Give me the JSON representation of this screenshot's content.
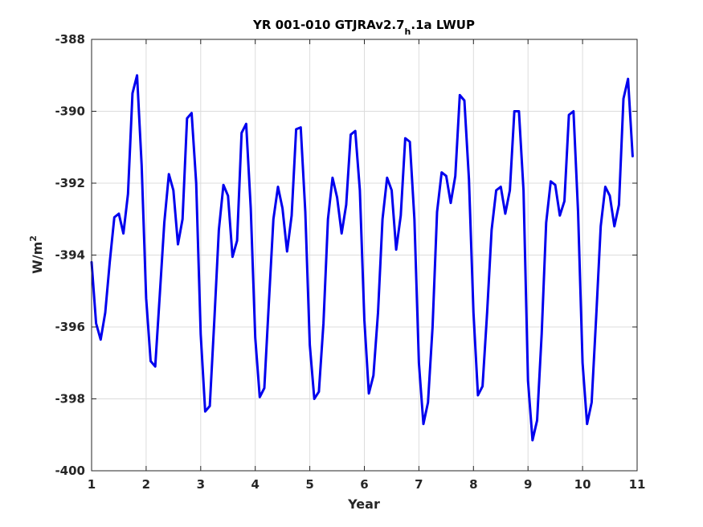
{
  "chart_data": {
    "type": "line",
    "title": {
      "main": "YR 001-010 GTJRAv2.7",
      "subscript": "h",
      "suffix": ".1a LWUP"
    },
    "xlabel": "Year",
    "ylabel": {
      "main": "W/m",
      "superscript": "2"
    },
    "xlim": [
      1,
      11
    ],
    "ylim": [
      -400,
      -388
    ],
    "xticks": [
      1,
      2,
      3,
      4,
      5,
      6,
      7,
      8,
      9,
      10,
      11
    ],
    "xtick_labels": [
      "1",
      "2",
      "3",
      "4",
      "5",
      "6",
      "7",
      "8",
      "9",
      "10",
      "11"
    ],
    "yticks": [
      -400,
      -398,
      -396,
      -394,
      -392,
      -390,
      -388
    ],
    "ytick_labels": [
      "-400",
      "-398",
      "-396",
      "-394",
      "-392",
      "-390",
      "-388"
    ],
    "grid": true,
    "line_color": "#0000ee",
    "series": [
      {
        "x": [
          1.0,
          1.083,
          1.167,
          1.25,
          1.333,
          1.417,
          1.5,
          1.583,
          1.667,
          1.75,
          1.833,
          1.917,
          2.0,
          2.083,
          2.167,
          2.25,
          2.333,
          2.417,
          2.5,
          2.583,
          2.667,
          2.75,
          2.833,
          2.917,
          3.0,
          3.083,
          3.167,
          3.25,
          3.333,
          3.417,
          3.5,
          3.583,
          3.667,
          3.75,
          3.833,
          3.917,
          4.0,
          4.083,
          4.167,
          4.25,
          4.333,
          4.417,
          4.5,
          4.583,
          4.667,
          4.75,
          4.833,
          4.917,
          5.0,
          5.083,
          5.167,
          5.25,
          5.333,
          5.417,
          5.5,
          5.583,
          5.667,
          5.75,
          5.833,
          5.917,
          6.0,
          6.083,
          6.167,
          6.25,
          6.333,
          6.417,
          6.5,
          6.583,
          6.667,
          6.75,
          6.833,
          6.917,
          7.0,
          7.083,
          7.167,
          7.25,
          7.333,
          7.417,
          7.5,
          7.583,
          7.667,
          7.75,
          7.833,
          7.917,
          8.0,
          8.083,
          8.167,
          8.25,
          8.333,
          8.417,
          8.5,
          8.583,
          8.667,
          8.75,
          8.833,
          8.917,
          9.0,
          9.083,
          9.167,
          9.25,
          9.333,
          9.417,
          9.5,
          9.583,
          9.667,
          9.75,
          9.833,
          9.917,
          10.0,
          10.083,
          10.167,
          10.25,
          10.333,
          10.417,
          10.5,
          10.583,
          10.667,
          10.75,
          10.833,
          10.917
        ],
        "y": [
          -394.2,
          -395.9,
          -396.35,
          -395.6,
          -394.2,
          -392.95,
          -392.85,
          -393.4,
          -392.3,
          -389.5,
          -389.0,
          -391.5,
          -395.2,
          -396.95,
          -397.1,
          -395.1,
          -393.1,
          -391.75,
          -392.2,
          -393.7,
          -393.0,
          -390.2,
          -390.05,
          -392.0,
          -396.2,
          -398.35,
          -398.2,
          -395.8,
          -393.3,
          -392.05,
          -392.35,
          -394.05,
          -393.6,
          -390.6,
          -390.35,
          -392.7,
          -396.3,
          -397.95,
          -397.7,
          -395.3,
          -393.0,
          -392.1,
          -392.7,
          -393.9,
          -392.9,
          -390.5,
          -390.45,
          -392.8,
          -396.5,
          -398.0,
          -397.8,
          -395.9,
          -393.0,
          -391.85,
          -392.4,
          -393.4,
          -392.6,
          -390.65,
          -390.55,
          -392.2,
          -395.8,
          -397.85,
          -397.35,
          -395.6,
          -393.0,
          -391.85,
          -392.2,
          -393.85,
          -392.9,
          -390.75,
          -390.85,
          -393.0,
          -397.0,
          -398.7,
          -398.1,
          -396.0,
          -392.8,
          -391.7,
          -391.8,
          -392.55,
          -391.8,
          -389.55,
          -389.7,
          -391.9,
          -395.6,
          -397.9,
          -397.65,
          -395.6,
          -393.3,
          -392.2,
          -392.1,
          -392.85,
          -392.2,
          -390.0,
          -390.0,
          -392.2,
          -397.5,
          -399.15,
          -398.6,
          -396.2,
          -393.1,
          -391.95,
          -392.05,
          -392.9,
          -392.5,
          -390.1,
          -390.0,
          -392.8,
          -397.0,
          -398.7,
          -398.1,
          -395.7,
          -393.2,
          -392.1,
          -392.35,
          -393.2,
          -392.6,
          -389.65,
          -389.1,
          -391.25
        ]
      }
    ]
  }
}
